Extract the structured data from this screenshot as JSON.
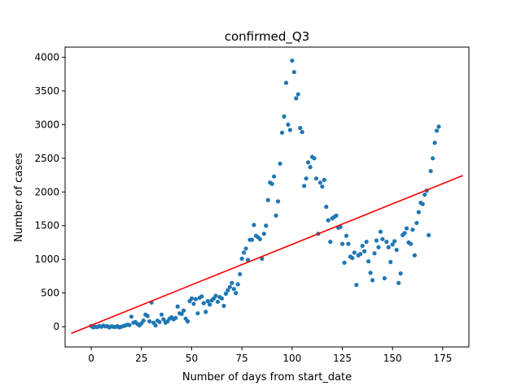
{
  "chart_data": {
    "type": "scatter",
    "title": "confirmed_Q3",
    "xlabel": "Number of days from start_date",
    "ylabel": "Number of cases",
    "xlim": [
      -13,
      188
    ],
    "ylim": [
      -300,
      4150
    ],
    "xticks": [
      0,
      25,
      50,
      75,
      100,
      125,
      150,
      175
    ],
    "yticks": [
      0,
      500,
      1000,
      1500,
      2000,
      2500,
      3000,
      3500,
      4000
    ],
    "grid": false,
    "colors": {
      "points": "#1f77b4",
      "fit": "#ff0000",
      "axes": "#000000"
    },
    "series": [
      {
        "kind": "scatter",
        "points": [
          [
            0,
            10
          ],
          [
            1,
            -10
          ],
          [
            2,
            0
          ],
          [
            3,
            -5
          ],
          [
            4,
            10
          ],
          [
            5,
            0
          ],
          [
            6,
            15
          ],
          [
            7,
            5
          ],
          [
            8,
            10
          ],
          [
            9,
            -10
          ],
          [
            10,
            5
          ],
          [
            11,
            0
          ],
          [
            12,
            -5
          ],
          [
            13,
            10
          ],
          [
            14,
            -10
          ],
          [
            15,
            0
          ],
          [
            16,
            10
          ],
          [
            17,
            20
          ],
          [
            18,
            30
          ],
          [
            19,
            25
          ],
          [
            20,
            150
          ],
          [
            21,
            60
          ],
          [
            22,
            70
          ],
          [
            23,
            40
          ],
          [
            24,
            20
          ],
          [
            25,
            50
          ],
          [
            26,
            90
          ],
          [
            27,
            180
          ],
          [
            28,
            160
          ],
          [
            29,
            80
          ],
          [
            30,
            360
          ],
          [
            31,
            60
          ],
          [
            32,
            20
          ],
          [
            33,
            90
          ],
          [
            34,
            70
          ],
          [
            35,
            180
          ],
          [
            36,
            110
          ],
          [
            37,
            60
          ],
          [
            38,
            80
          ],
          [
            39,
            120
          ],
          [
            40,
            140
          ],
          [
            41,
            110
          ],
          [
            42,
            130
          ],
          [
            43,
            300
          ],
          [
            44,
            200
          ],
          [
            45,
            190
          ],
          [
            46,
            240
          ],
          [
            47,
            120
          ],
          [
            48,
            80
          ],
          [
            49,
            380
          ],
          [
            50,
            420
          ],
          [
            51,
            340
          ],
          [
            52,
            410
          ],
          [
            53,
            200
          ],
          [
            54,
            430
          ],
          [
            55,
            450
          ],
          [
            56,
            350
          ],
          [
            57,
            220
          ],
          [
            58,
            380
          ],
          [
            59,
            330
          ],
          [
            60,
            390
          ],
          [
            61,
            420
          ],
          [
            62,
            460
          ],
          [
            63,
            370
          ],
          [
            64,
            440
          ],
          [
            65,
            420
          ],
          [
            66,
            310
          ],
          [
            67,
            490
          ],
          [
            68,
            540
          ],
          [
            69,
            590
          ],
          [
            70,
            650
          ],
          [
            71,
            560
          ],
          [
            72,
            500
          ],
          [
            73,
            630
          ],
          [
            74,
            780
          ],
          [
            75,
            1010
          ],
          [
            76,
            1100
          ],
          [
            77,
            1160
          ],
          [
            78,
            990
          ],
          [
            79,
            1290
          ],
          [
            80,
            1290
          ],
          [
            81,
            1510
          ],
          [
            82,
            1350
          ],
          [
            83,
            1330
          ],
          [
            84,
            1300
          ],
          [
            85,
            1010
          ],
          [
            86,
            1380
          ],
          [
            87,
            1500
          ],
          [
            88,
            1880
          ],
          [
            89,
            2140
          ],
          [
            90,
            2120
          ],
          [
            91,
            2230
          ],
          [
            92,
            1650
          ],
          [
            93,
            1860
          ],
          [
            94,
            2420
          ],
          [
            95,
            2880
          ],
          [
            96,
            3120
          ],
          [
            97,
            3620
          ],
          [
            98,
            3000
          ],
          [
            99,
            2920
          ],
          [
            100,
            3950
          ],
          [
            101,
            3780
          ],
          [
            102,
            3390
          ],
          [
            103,
            3450
          ],
          [
            104,
            2950
          ],
          [
            105,
            2890
          ],
          [
            106,
            2090
          ],
          [
            107,
            2200
          ],
          [
            108,
            2440
          ],
          [
            109,
            2370
          ],
          [
            110,
            2520
          ],
          [
            111,
            2500
          ],
          [
            112,
            2200
          ],
          [
            113,
            1380
          ],
          [
            114,
            2140
          ],
          [
            115,
            2080
          ],
          [
            116,
            2180
          ],
          [
            117,
            1780
          ],
          [
            118,
            1580
          ],
          [
            119,
            1260
          ],
          [
            120,
            1610
          ],
          [
            121,
            1630
          ],
          [
            122,
            1650
          ],
          [
            123,
            1470
          ],
          [
            124,
            1480
          ],
          [
            125,
            1230
          ],
          [
            126,
            950
          ],
          [
            127,
            1350
          ],
          [
            128,
            1230
          ],
          [
            129,
            1040
          ],
          [
            130,
            1020
          ],
          [
            131,
            1100
          ],
          [
            132,
            620
          ],
          [
            133,
            1060
          ],
          [
            134,
            1080
          ],
          [
            135,
            1200
          ],
          [
            136,
            1120
          ],
          [
            137,
            1260
          ],
          [
            138,
            970
          ],
          [
            139,
            800
          ],
          [
            140,
            690
          ],
          [
            141,
            1090
          ],
          [
            142,
            1280
          ],
          [
            143,
            1180
          ],
          [
            144,
            1410
          ],
          [
            145,
            1300
          ],
          [
            146,
            720
          ],
          [
            147,
            1260
          ],
          [
            148,
            1180
          ],
          [
            149,
            960
          ],
          [
            150,
            1220
          ],
          [
            151,
            1270
          ],
          [
            152,
            1140
          ],
          [
            153,
            650
          ],
          [
            154,
            790
          ],
          [
            155,
            1360
          ],
          [
            156,
            1390
          ],
          [
            157,
            1460
          ],
          [
            158,
            1250
          ],
          [
            159,
            1230
          ],
          [
            160,
            1440
          ],
          [
            161,
            1060
          ],
          [
            162,
            1540
          ],
          [
            163,
            1700
          ],
          [
            164,
            1840
          ],
          [
            165,
            1820
          ],
          [
            166,
            1960
          ],
          [
            167,
            2020
          ],
          [
            168,
            1360
          ],
          [
            169,
            2310
          ],
          [
            170,
            2500
          ],
          [
            171,
            2730
          ],
          [
            172,
            2910
          ],
          [
            173,
            2970
          ]
        ]
      },
      {
        "kind": "line",
        "points": [
          [
            -10,
            -100
          ],
          [
            185,
            2245
          ]
        ]
      }
    ]
  }
}
